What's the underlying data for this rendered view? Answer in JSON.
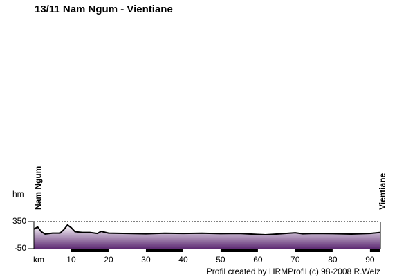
{
  "chart_data": {
    "type": "area",
    "title": "13/11 Nam Ngum - Vientiane",
    "y_label": "hm",
    "x_label": "km",
    "start_label": "Nam Ngum",
    "end_label": "Vientiane",
    "footer": "Profil created by HRMProfil (c) 98-2008 R.Welz",
    "x": [
      0,
      1,
      2,
      3,
      5,
      7,
      8,
      9,
      10,
      11,
      13,
      15,
      17,
      18,
      20,
      25,
      30,
      35,
      40,
      45,
      50,
      55,
      60,
      62,
      65,
      70,
      72,
      75,
      80,
      85,
      90,
      92.8
    ],
    "values": [
      240,
      270,
      200,
      165,
      180,
      180,
      230,
      300,
      260,
      200,
      190,
      190,
      175,
      205,
      180,
      175,
      170,
      178,
      175,
      178,
      172,
      175,
      160,
      155,
      165,
      185,
      170,
      175,
      172,
      165,
      175,
      190
    ],
    "xlim": [
      0,
      92.8
    ],
    "ylim": [
      -50,
      350
    ],
    "xticks": [
      10,
      20,
      30,
      40,
      50,
      60,
      70,
      80,
      90
    ],
    "yticks": [
      350,
      -50
    ],
    "color": "#000000"
  }
}
